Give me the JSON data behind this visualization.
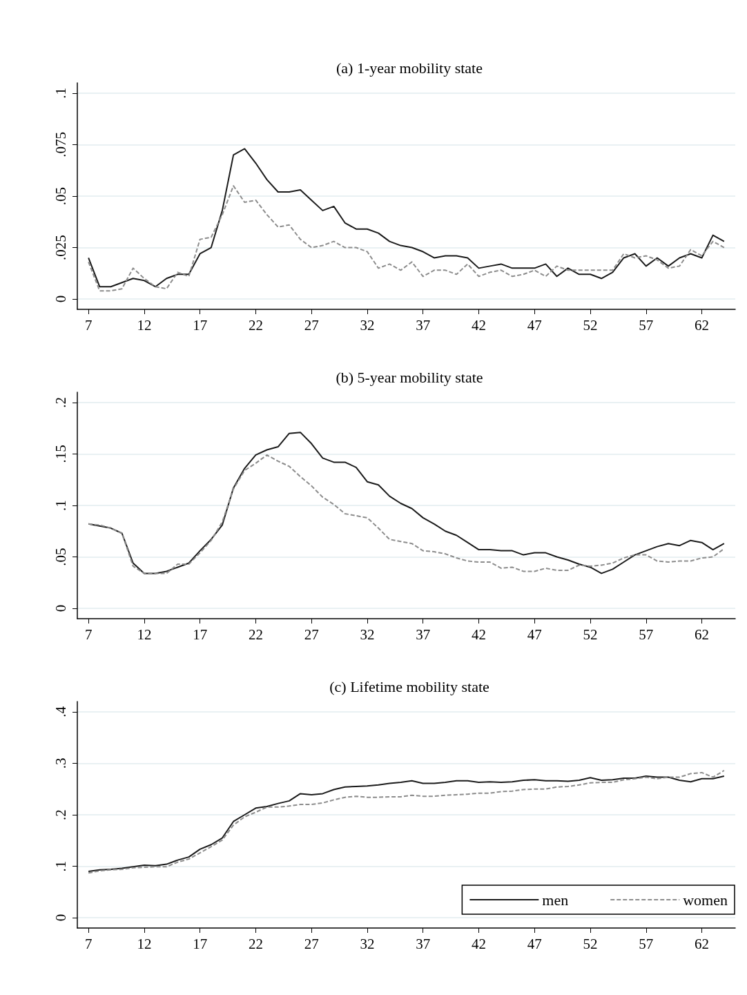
{
  "chart_data": [
    {
      "type": "line",
      "title": "(a) 1-year mobility state",
      "x": [
        7,
        8,
        9,
        10,
        11,
        12,
        13,
        14,
        15,
        16,
        17,
        18,
        19,
        20,
        21,
        22,
        23,
        24,
        25,
        26,
        27,
        28,
        29,
        30,
        31,
        32,
        33,
        34,
        35,
        36,
        37,
        38,
        39,
        40,
        41,
        42,
        43,
        44,
        45,
        46,
        47,
        48,
        49,
        50,
        51,
        52,
        53,
        54,
        55,
        56,
        57,
        58,
        59,
        60,
        61,
        62,
        63,
        64
      ],
      "xlim": [
        6,
        65
      ],
      "xticks": [
        7,
        12,
        17,
        22,
        27,
        32,
        37,
        42,
        47,
        52,
        57,
        62
      ],
      "ylim": [
        -0.005,
        0.105
      ],
      "yticks": [
        {
          "value": 0,
          "label": "0"
        },
        {
          "value": 0.025,
          "label": ".025"
        },
        {
          "value": 0.05,
          "label": ".05"
        },
        {
          "value": 0.075,
          "label": ".075"
        },
        {
          "value": 0.1,
          "label": ".1"
        }
      ],
      "grid": "y",
      "series": [
        {
          "color": "#1a1a1a",
          "line_style": "solid",
          "values": [
            0.02,
            0.006,
            0.006,
            0.008,
            0.01,
            0.009,
            0.006,
            0.01,
            0.012,
            0.012,
            0.022,
            0.025,
            0.043,
            0.07,
            0.073,
            0.066,
            0.058,
            0.052,
            0.052,
            0.053,
            0.048,
            0.043,
            0.045,
            0.037,
            0.034,
            0.034,
            0.032,
            0.028,
            0.026,
            0.025,
            0.023,
            0.02,
            0.021,
            0.021,
            0.02,
            0.015,
            0.016,
            0.017,
            0.015,
            0.015,
            0.015,
            0.017,
            0.011,
            0.015,
            0.012,
            0.012,
            0.01,
            0.013,
            0.02,
            0.022,
            0.016,
            0.02,
            0.016,
            0.02,
            0.022,
            0.02,
            0.031,
            0.028
          ]
        },
        {
          "color": "#8c8c8c",
          "line_style": "dashed",
          "values": [
            0.018,
            0.004,
            0.004,
            0.005,
            0.015,
            0.01,
            0.006,
            0.005,
            0.013,
            0.011,
            0.029,
            0.03,
            0.041,
            0.055,
            0.047,
            0.048,
            0.041,
            0.035,
            0.036,
            0.029,
            0.025,
            0.026,
            0.028,
            0.025,
            0.025,
            0.023,
            0.015,
            0.017,
            0.014,
            0.018,
            0.011,
            0.014,
            0.014,
            0.012,
            0.017,
            0.011,
            0.013,
            0.014,
            0.011,
            0.012,
            0.014,
            0.011,
            0.016,
            0.014,
            0.014,
            0.014,
            0.014,
            0.014,
            0.022,
            0.02,
            0.021,
            0.019,
            0.015,
            0.016,
            0.024,
            0.021,
            0.028,
            0.025
          ]
        }
      ]
    },
    {
      "type": "line",
      "title": "(b) 5-year mobility state",
      "x": [
        7,
        8,
        9,
        10,
        11,
        12,
        13,
        14,
        15,
        16,
        17,
        18,
        19,
        20,
        21,
        22,
        23,
        24,
        25,
        26,
        27,
        28,
        29,
        30,
        31,
        32,
        33,
        34,
        35,
        36,
        37,
        38,
        39,
        40,
        41,
        42,
        43,
        44,
        45,
        46,
        47,
        48,
        49,
        50,
        51,
        52,
        53,
        54,
        55,
        56,
        57,
        58,
        59,
        60,
        61,
        62,
        63,
        64
      ],
      "xlim": [
        6,
        65
      ],
      "xticks": [
        7,
        12,
        17,
        22,
        27,
        32,
        37,
        42,
        47,
        52,
        57,
        62
      ],
      "ylim": [
        -0.01,
        0.21
      ],
      "yticks": [
        {
          "value": 0,
          "label": "0"
        },
        {
          "value": 0.05,
          "label": ".05"
        },
        {
          "value": 0.1,
          "label": ".1"
        },
        {
          "value": 0.15,
          "label": ".15"
        },
        {
          "value": 0.2,
          "label": ".2"
        }
      ],
      "grid": "y",
      "series": [
        {
          "color": "#1a1a1a",
          "line_style": "solid",
          "values": [
            0.082,
            0.08,
            0.078,
            0.073,
            0.044,
            0.034,
            0.034,
            0.036,
            0.04,
            0.044,
            0.056,
            0.067,
            0.081,
            0.117,
            0.136,
            0.149,
            0.154,
            0.157,
            0.17,
            0.171,
            0.16,
            0.146,
            0.142,
            0.142,
            0.137,
            0.123,
            0.12,
            0.109,
            0.102,
            0.097,
            0.088,
            0.082,
            0.075,
            0.071,
            0.064,
            0.057,
            0.057,
            0.056,
            0.056,
            0.052,
            0.054,
            0.054,
            0.05,
            0.047,
            0.043,
            0.04,
            0.034,
            0.038,
            0.045,
            0.052,
            0.056,
            0.06,
            0.063,
            0.061,
            0.066,
            0.064,
            0.057,
            0.063
          ]
        },
        {
          "color": "#8c8c8c",
          "line_style": "dashed",
          "values": [
            0.082,
            0.081,
            0.078,
            0.073,
            0.041,
            0.034,
            0.034,
            0.034,
            0.043,
            0.043,
            0.054,
            0.066,
            0.084,
            0.116,
            0.134,
            0.141,
            0.149,
            0.143,
            0.138,
            0.128,
            0.119,
            0.108,
            0.101,
            0.092,
            0.09,
            0.088,
            0.078,
            0.067,
            0.065,
            0.063,
            0.056,
            0.055,
            0.053,
            0.049,
            0.046,
            0.045,
            0.045,
            0.039,
            0.04,
            0.036,
            0.036,
            0.039,
            0.037,
            0.037,
            0.042,
            0.041,
            0.042,
            0.044,
            0.049,
            0.052,
            0.052,
            0.046,
            0.045,
            0.046,
            0.046,
            0.049,
            0.05,
            0.058
          ]
        }
      ]
    },
    {
      "type": "line",
      "title": "(c) Lifetime mobility state",
      "x": [
        7,
        8,
        9,
        10,
        11,
        12,
        13,
        14,
        15,
        16,
        17,
        18,
        19,
        20,
        21,
        22,
        23,
        24,
        25,
        26,
        27,
        28,
        29,
        30,
        31,
        32,
        33,
        34,
        35,
        36,
        37,
        38,
        39,
        40,
        41,
        42,
        43,
        44,
        45,
        46,
        47,
        48,
        49,
        50,
        51,
        52,
        53,
        54,
        55,
        56,
        57,
        58,
        59,
        60,
        61,
        62,
        63,
        64
      ],
      "xlim": [
        6,
        65
      ],
      "xticks": [
        7,
        12,
        17,
        22,
        27,
        32,
        37,
        42,
        47,
        52,
        57,
        62
      ],
      "ylim": [
        -0.02,
        0.42
      ],
      "yticks": [
        {
          "value": 0,
          "label": "0"
        },
        {
          "value": 0.1,
          "label": ".1"
        },
        {
          "value": 0.2,
          "label": ".2"
        },
        {
          "value": 0.3,
          "label": ".3"
        },
        {
          "value": 0.4,
          "label": ".4"
        }
      ],
      "grid": "y",
      "legend": "bottom right",
      "series": [
        {
          "name": "men",
          "color": "#1a1a1a",
          "line_style": "solid",
          "values": [
            0.09,
            0.093,
            0.094,
            0.096,
            0.099,
            0.102,
            0.101,
            0.104,
            0.112,
            0.118,
            0.133,
            0.142,
            0.155,
            0.187,
            0.2,
            0.213,
            0.216,
            0.222,
            0.227,
            0.241,
            0.239,
            0.241,
            0.249,
            0.254,
            0.255,
            0.256,
            0.258,
            0.261,
            0.263,
            0.266,
            0.261,
            0.261,
            0.263,
            0.266,
            0.266,
            0.263,
            0.264,
            0.263,
            0.264,
            0.267,
            0.268,
            0.266,
            0.266,
            0.265,
            0.267,
            0.272,
            0.267,
            0.268,
            0.271,
            0.271,
            0.275,
            0.273,
            0.273,
            0.267,
            0.264,
            0.27,
            0.27,
            0.275
          ]
        },
        {
          "name": "women",
          "color": "#8c8c8c",
          "line_style": "dashed",
          "values": [
            0.087,
            0.091,
            0.093,
            0.094,
            0.097,
            0.098,
            0.099,
            0.099,
            0.108,
            0.114,
            0.126,
            0.138,
            0.151,
            0.18,
            0.196,
            0.205,
            0.215,
            0.215,
            0.217,
            0.22,
            0.22,
            0.223,
            0.229,
            0.234,
            0.236,
            0.234,
            0.234,
            0.235,
            0.235,
            0.238,
            0.236,
            0.236,
            0.238,
            0.239,
            0.24,
            0.242,
            0.242,
            0.245,
            0.246,
            0.249,
            0.25,
            0.25,
            0.254,
            0.255,
            0.258,
            0.262,
            0.263,
            0.263,
            0.268,
            0.27,
            0.273,
            0.27,
            0.273,
            0.273,
            0.28,
            0.282,
            0.273,
            0.286
          ]
        }
      ]
    }
  ]
}
